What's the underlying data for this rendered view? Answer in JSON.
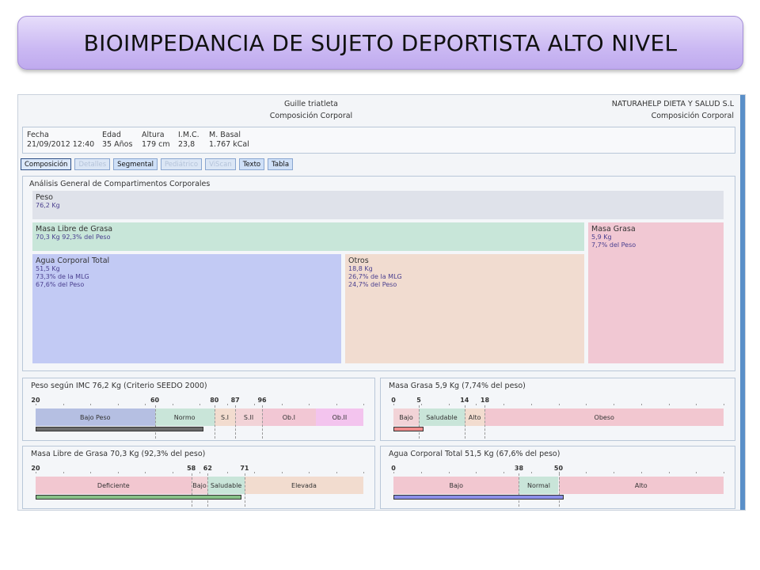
{
  "slide_title": "BIOIMPEDANCIA DE SUJETO DEPORTISTA ALTO NIVEL",
  "header": {
    "subject_name": "Guille triatleta",
    "subject_report": "Composición Corporal",
    "company_name": "NATURAHELP DIETA Y SALUD S.L",
    "company_report": "Composición Corporal"
  },
  "info": {
    "fecha_label": "Fecha",
    "fecha_value": "21/09/2012 12:40",
    "edad_label": "Edad",
    "edad_value": "35 Años",
    "altura_label": "Altura",
    "altura_value": "179 cm",
    "imc_label": "I.M.C.",
    "imc_value": "23,8",
    "mbasal_label": "M. Basal",
    "mbasal_value": "1.767 kCal"
  },
  "tabs": [
    {
      "label": "Composición",
      "state": "active"
    },
    {
      "label": "Detalles",
      "state": "disabled"
    },
    {
      "label": "Segmental",
      "state": "normal"
    },
    {
      "label": "Pediátrico",
      "state": "disabled"
    },
    {
      "label": "ViScan",
      "state": "disabled"
    },
    {
      "label": "Texto",
      "state": "normal"
    },
    {
      "label": "Tabla",
      "state": "normal"
    }
  ],
  "compartments": {
    "title": "Análisis General de Compartimentos Corporales",
    "peso": {
      "label": "Peso",
      "line1": "76,2 Kg"
    },
    "mlg": {
      "label": "Masa Libre de Grasa",
      "line1": "70,3 Kg   92,3% del Peso"
    },
    "masa_grasa": {
      "label": "Masa Grasa",
      "line1": "5,9 Kg",
      "line2": "7,7% del Peso"
    },
    "agua": {
      "label": "Agua Corporal Total",
      "line1": "51,5 Kg",
      "line2": "73,3% de la MLG",
      "line3": "67,6% del Peso"
    },
    "otros": {
      "label": "Otros",
      "line1": "18,8 Kg",
      "line2": "26,7% de la MLG",
      "line3": "24,7% del Peso"
    }
  },
  "scales": [
    {
      "title": "Peso según IMC   76,2 Kg   (Criterio SEEDO 2000)",
      "min": 20,
      "max": 101,
      "ticks": [
        "20",
        "60",
        "80",
        "87",
        "96"
      ],
      "tick_values": [
        20,
        60,
        80,
        87,
        96
      ],
      "segments": [
        {
          "label": "Bajo Peso",
          "from": 20,
          "to": 60,
          "color": "#b5bfe2"
        },
        {
          "label": "Normo",
          "from": 60,
          "to": 80,
          "color": "#c9e5d9"
        },
        {
          "label": "S.I",
          "from": 80,
          "to": 87,
          "color": "#f2dccf"
        },
        {
          "label": "S.II",
          "from": 87,
          "to": 96,
          "color": "#f2d3d7"
        },
        {
          "label": "Ob.I",
          "from": 96,
          "to": 114,
          "color": "#f2c7d4"
        },
        {
          "label": "Ob.II",
          "from": 114,
          "to": 130,
          "color": "#f3c4ee"
        }
      ],
      "scale_max": 130,
      "value": 76.2,
      "indicator_color": "#6d6d6d"
    },
    {
      "title": "Masa Grasa   5,9 Kg   (7,74% del peso)",
      "ticks": [
        "0",
        "5",
        "14",
        "18"
      ],
      "tick_values": [
        0,
        5,
        14,
        18
      ],
      "segments": [
        {
          "label": "Bajo",
          "from": 0,
          "to": 5,
          "color": "#f2d3d7"
        },
        {
          "label": "Saludable",
          "from": 5,
          "to": 14,
          "color": "#c9e5d9"
        },
        {
          "label": "Alto",
          "from": 14,
          "to": 18,
          "color": "#f2dccf"
        },
        {
          "label": "Obeso",
          "from": 18,
          "to": 65,
          "color": "#f2c7d0"
        }
      ],
      "scale_max": 65,
      "value": 5.9,
      "indicator_color": "#f08d8d"
    },
    {
      "title": "Masa Libre de Grasa   70,3 Kg   (92,3% del peso)",
      "ticks": [
        "20",
        "58",
        "62",
        "71"
      ],
      "tick_values": [
        20,
        58,
        62,
        71
      ],
      "segments": [
        {
          "label": "Deficiente",
          "from": 20,
          "to": 58,
          "color": "#f2c7d0"
        },
        {
          "label": "Bajo",
          "from": 58,
          "to": 62,
          "color": "#f2d3d7"
        },
        {
          "label": "Saludable",
          "from": 62,
          "to": 71,
          "color": "#c9e5d9"
        },
        {
          "label": "Elevada",
          "from": 71,
          "to": 100,
          "color": "#f2dccf"
        }
      ],
      "scale_max": 100,
      "value": 70.3,
      "indicator_color": "#86c086"
    },
    {
      "title": "Agua Corporal Total   51,5 Kg   (67,6% del peso)",
      "ticks": [
        "0",
        "38",
        "50"
      ],
      "tick_values": [
        0,
        38,
        50
      ],
      "segments": [
        {
          "label": "Bajo",
          "from": 0,
          "to": 38,
          "color": "#f2c7d0"
        },
        {
          "label": "Normal",
          "from": 38,
          "to": 50,
          "color": "#c9e5d9"
        },
        {
          "label": "Alto",
          "from": 50,
          "to": 100,
          "color": "#f2c7d0"
        }
      ],
      "scale_max": 100,
      "value": 51.5,
      "indicator_color": "#8a8ee8"
    }
  ]
}
